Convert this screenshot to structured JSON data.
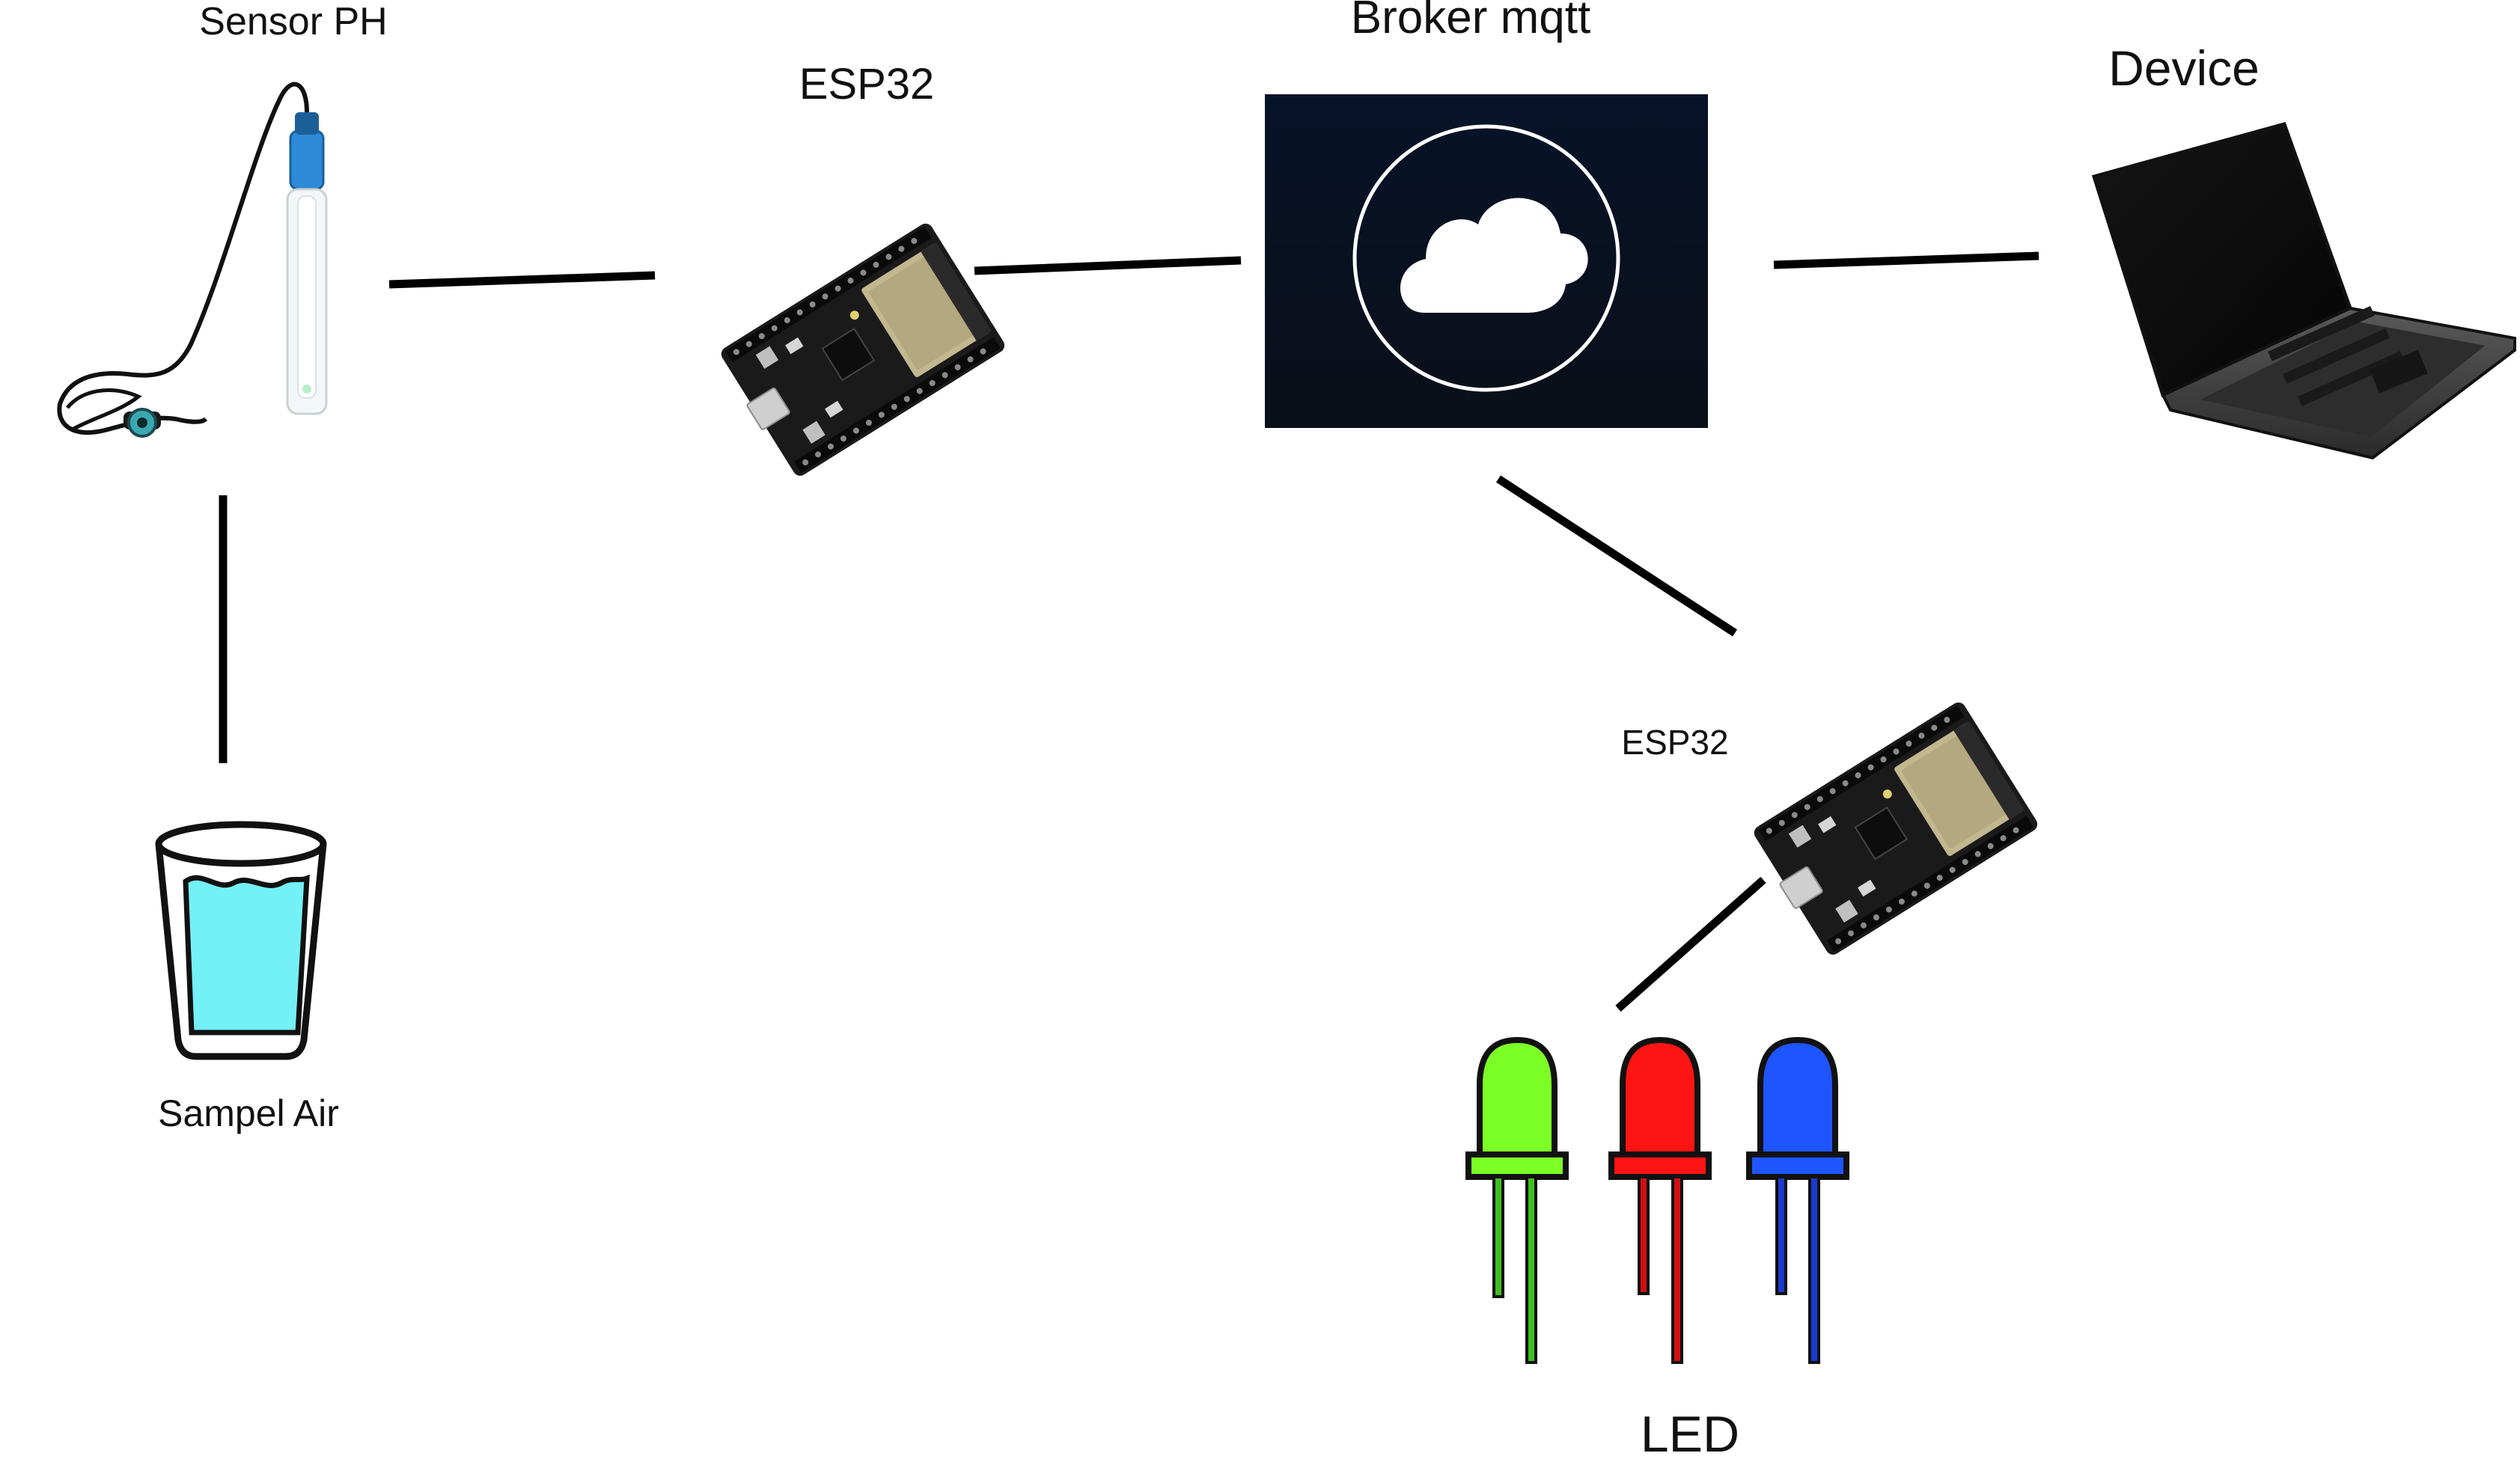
{
  "diagram": {
    "labels": {
      "sensor_ph": "Sensor PH",
      "esp32_top": "ESP32",
      "broker": "Broker mqtt",
      "device": "Device",
      "esp32_bottom": "ESP32",
      "sample": "Sampel Air",
      "led": "LED"
    },
    "icons": {
      "ph_probe": "ph-sensor-probe-icon",
      "esp32_board": "esp32-board-icon",
      "cloud": "cloud-icon",
      "laptop": "laptop-icon",
      "water_glass": "water-glass-icon",
      "led": "led-icon"
    },
    "colors": {
      "connector": "#000000",
      "broker_bg_top": "#071329",
      "broker_bg_bottom": "#0b0f18",
      "cloud_fill": "#ffffff",
      "water": "#74f0f7",
      "probe_cap": "#2e8bd8",
      "board_chip": "#b8ad83",
      "led_green": "#7cff25",
      "led_red": "#ff1414",
      "led_blue": "#1f55ff"
    }
  }
}
